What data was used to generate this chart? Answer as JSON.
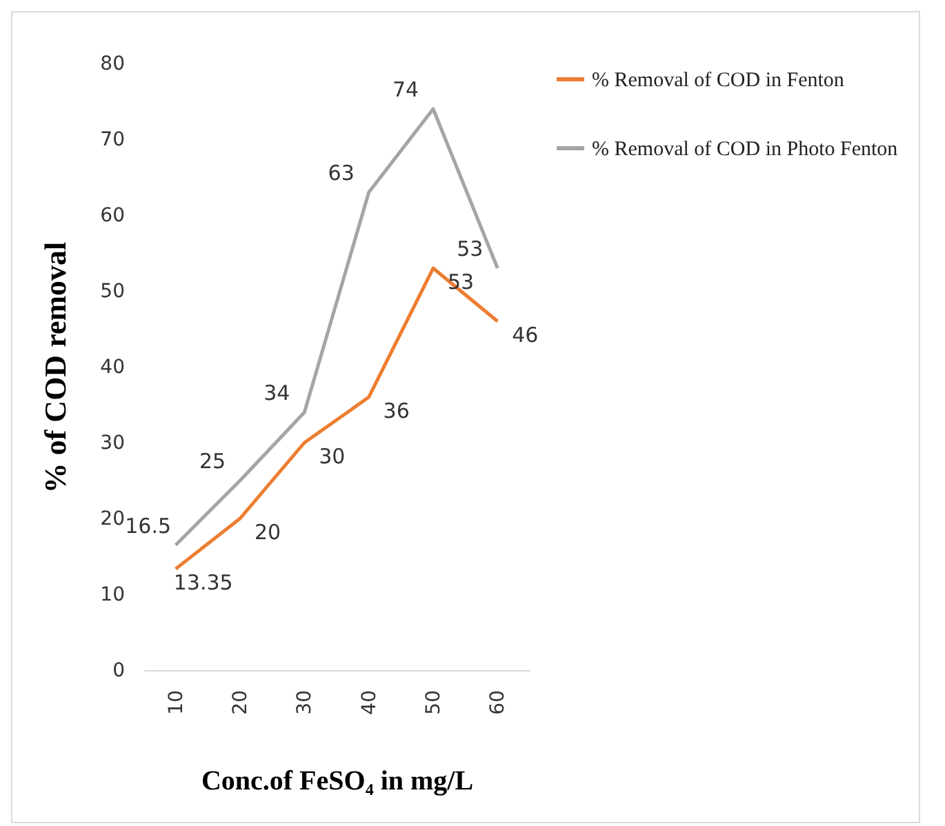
{
  "chart_data": {
    "type": "line",
    "xlabel": "Conc.of FeSO₄ in mg/L",
    "ylabel": "% of COD removal",
    "categories": [
      "10",
      "20",
      "30",
      "40",
      "50",
      "60"
    ],
    "series": [
      {
        "name": "% Removal of COD in Fenton",
        "color": "#ed7d31",
        "values": [
          13.35,
          20,
          30,
          36,
          53,
          46
        ]
      },
      {
        "name": "% Removal of COD in Photo Fenton",
        "color": "#a5a5a5",
        "values": [
          16.5,
          25,
          34,
          63,
          74,
          53
        ]
      }
    ],
    "ylim": [
      0,
      80
    ],
    "yticks": [
      0,
      10,
      20,
      30,
      40,
      50,
      60,
      70,
      80
    ],
    "grid": false,
    "legend": "right",
    "data_labels": true,
    "marker": "none",
    "line_style": "solid"
  }
}
